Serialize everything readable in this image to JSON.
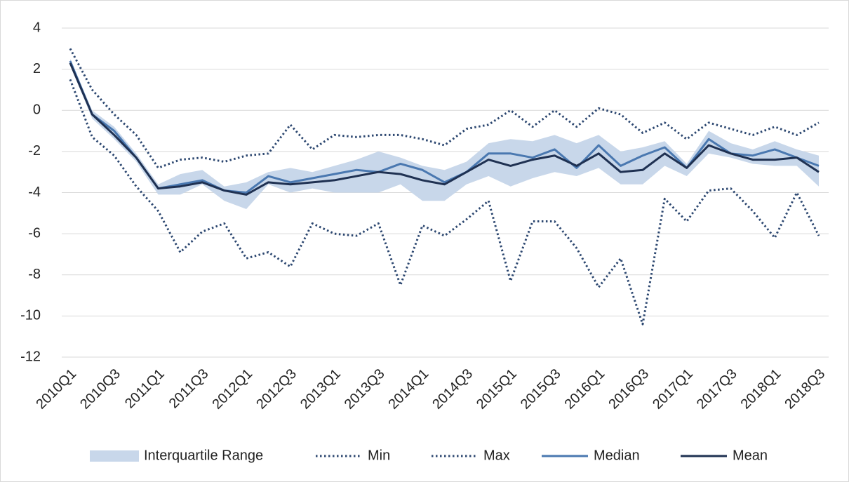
{
  "chart_data": {
    "type": "line",
    "categories": [
      "2010Q1",
      null,
      "2010Q3",
      null,
      "2011Q1",
      null,
      "2011Q3",
      null,
      "2012Q1",
      null,
      "2012Q3",
      null,
      "2013Q1",
      null,
      "2013Q3",
      null,
      "2014Q1",
      null,
      "2014Q3",
      null,
      "2015Q1",
      null,
      "2015Q3",
      null,
      "2016Q1",
      null,
      "2016Q3",
      null,
      "2017Q1",
      null,
      "2017Q3",
      null,
      "2018Q1",
      null,
      "2018Q3"
    ],
    "ylim": [
      -12,
      4
    ],
    "yticks": [
      -12,
      -10,
      -8,
      -6,
      -4,
      -2,
      0,
      2,
      4
    ],
    "grid": true,
    "legend": "bottom",
    "series": [
      {
        "name": "Interquartile Range",
        "type": "band",
        "color": "#c8d7ea",
        "high": [
          2.5,
          0.0,
          -0.8,
          -2.1,
          -3.6,
          -3.1,
          -2.9,
          -3.7,
          -3.5,
          -3.0,
          -2.8,
          -3.0,
          -2.7,
          -2.4,
          -2.0,
          -2.3,
          -2.7,
          -2.9,
          -2.5,
          -1.6,
          -1.4,
          -1.5,
          -1.2,
          -1.6,
          -1.2,
          -2.0,
          -1.8,
          -1.5,
          -2.6,
          -1.0,
          -1.6,
          -1.9,
          -1.5,
          -1.9,
          -2.2
        ],
        "low": [
          2.2,
          -0.4,
          -1.4,
          -2.5,
          -4.1,
          -4.1,
          -3.6,
          -4.4,
          -4.8,
          -3.6,
          -4.0,
          -3.8,
          -4.0,
          -4.0,
          -4.0,
          -3.6,
          -4.4,
          -4.4,
          -3.6,
          -3.2,
          -3.7,
          -3.3,
          -3.0,
          -3.2,
          -2.8,
          -3.6,
          -3.6,
          -2.7,
          -3.2,
          -2.1,
          -2.3,
          -2.6,
          -2.7,
          -2.7,
          -3.7
        ]
      },
      {
        "name": "Min",
        "type": "line",
        "dash": "dotted",
        "color": "#2c4770",
        "values": [
          1.5,
          -1.3,
          -2.2,
          -3.7,
          -4.9,
          -6.9,
          -5.9,
          -5.5,
          -7.2,
          -6.9,
          -7.6,
          -5.5,
          -6.0,
          -6.1,
          -5.5,
          -8.5,
          -5.6,
          -6.1,
          -5.3,
          -4.4,
          -8.3,
          -5.4,
          -5.4,
          -6.7,
          -8.6,
          -7.2,
          -10.4,
          -4.3,
          -5.4,
          -3.9,
          -3.8,
          -4.9,
          -6.2,
          -4.0,
          -6.1
        ]
      },
      {
        "name": "Max",
        "type": "line",
        "dash": "dotted",
        "color": "#2c4770",
        "values": [
          3.0,
          1.0,
          -0.2,
          -1.2,
          -2.8,
          -2.4,
          -2.3,
          -2.5,
          -2.2,
          -2.1,
          -0.7,
          -1.9,
          -1.2,
          -1.3,
          -1.2,
          -1.2,
          -1.4,
          -1.7,
          -0.9,
          -0.7,
          0.0,
          -0.8,
          0.0,
          -0.8,
          0.1,
          -0.2,
          -1.1,
          -0.6,
          -1.4,
          -0.6,
          -0.9,
          -1.2,
          -0.8,
          -1.2,
          -0.6
        ]
      },
      {
        "name": "Median",
        "type": "line",
        "dash": "solid",
        "color": "#4a78b0",
        "values": [
          2.4,
          -0.2,
          -1.0,
          -2.3,
          -3.8,
          -3.6,
          -3.4,
          -3.9,
          -4.0,
          -3.2,
          -3.5,
          -3.3,
          -3.1,
          -2.9,
          -3.0,
          -2.6,
          -2.9,
          -3.5,
          -3.0,
          -2.1,
          -2.1,
          -2.3,
          -1.9,
          -2.8,
          -1.7,
          -2.7,
          -2.2,
          -1.8,
          -2.8,
          -1.4,
          -2.1,
          -2.2,
          -1.9,
          -2.3,
          -2.7
        ]
      },
      {
        "name": "Mean",
        "type": "line",
        "dash": "solid",
        "color": "#1f3152",
        "values": [
          2.3,
          -0.2,
          -1.2,
          -2.3,
          -3.8,
          -3.7,
          -3.5,
          -3.9,
          -4.1,
          -3.5,
          -3.6,
          -3.5,
          -3.4,
          -3.2,
          -3.0,
          -3.1,
          -3.4,
          -3.6,
          -3.0,
          -2.4,
          -2.7,
          -2.4,
          -2.2,
          -2.7,
          -2.1,
          -3.0,
          -2.9,
          -2.1,
          -2.8,
          -1.7,
          -2.1,
          -2.4,
          -2.4,
          -2.3,
          -3.0
        ]
      }
    ]
  }
}
